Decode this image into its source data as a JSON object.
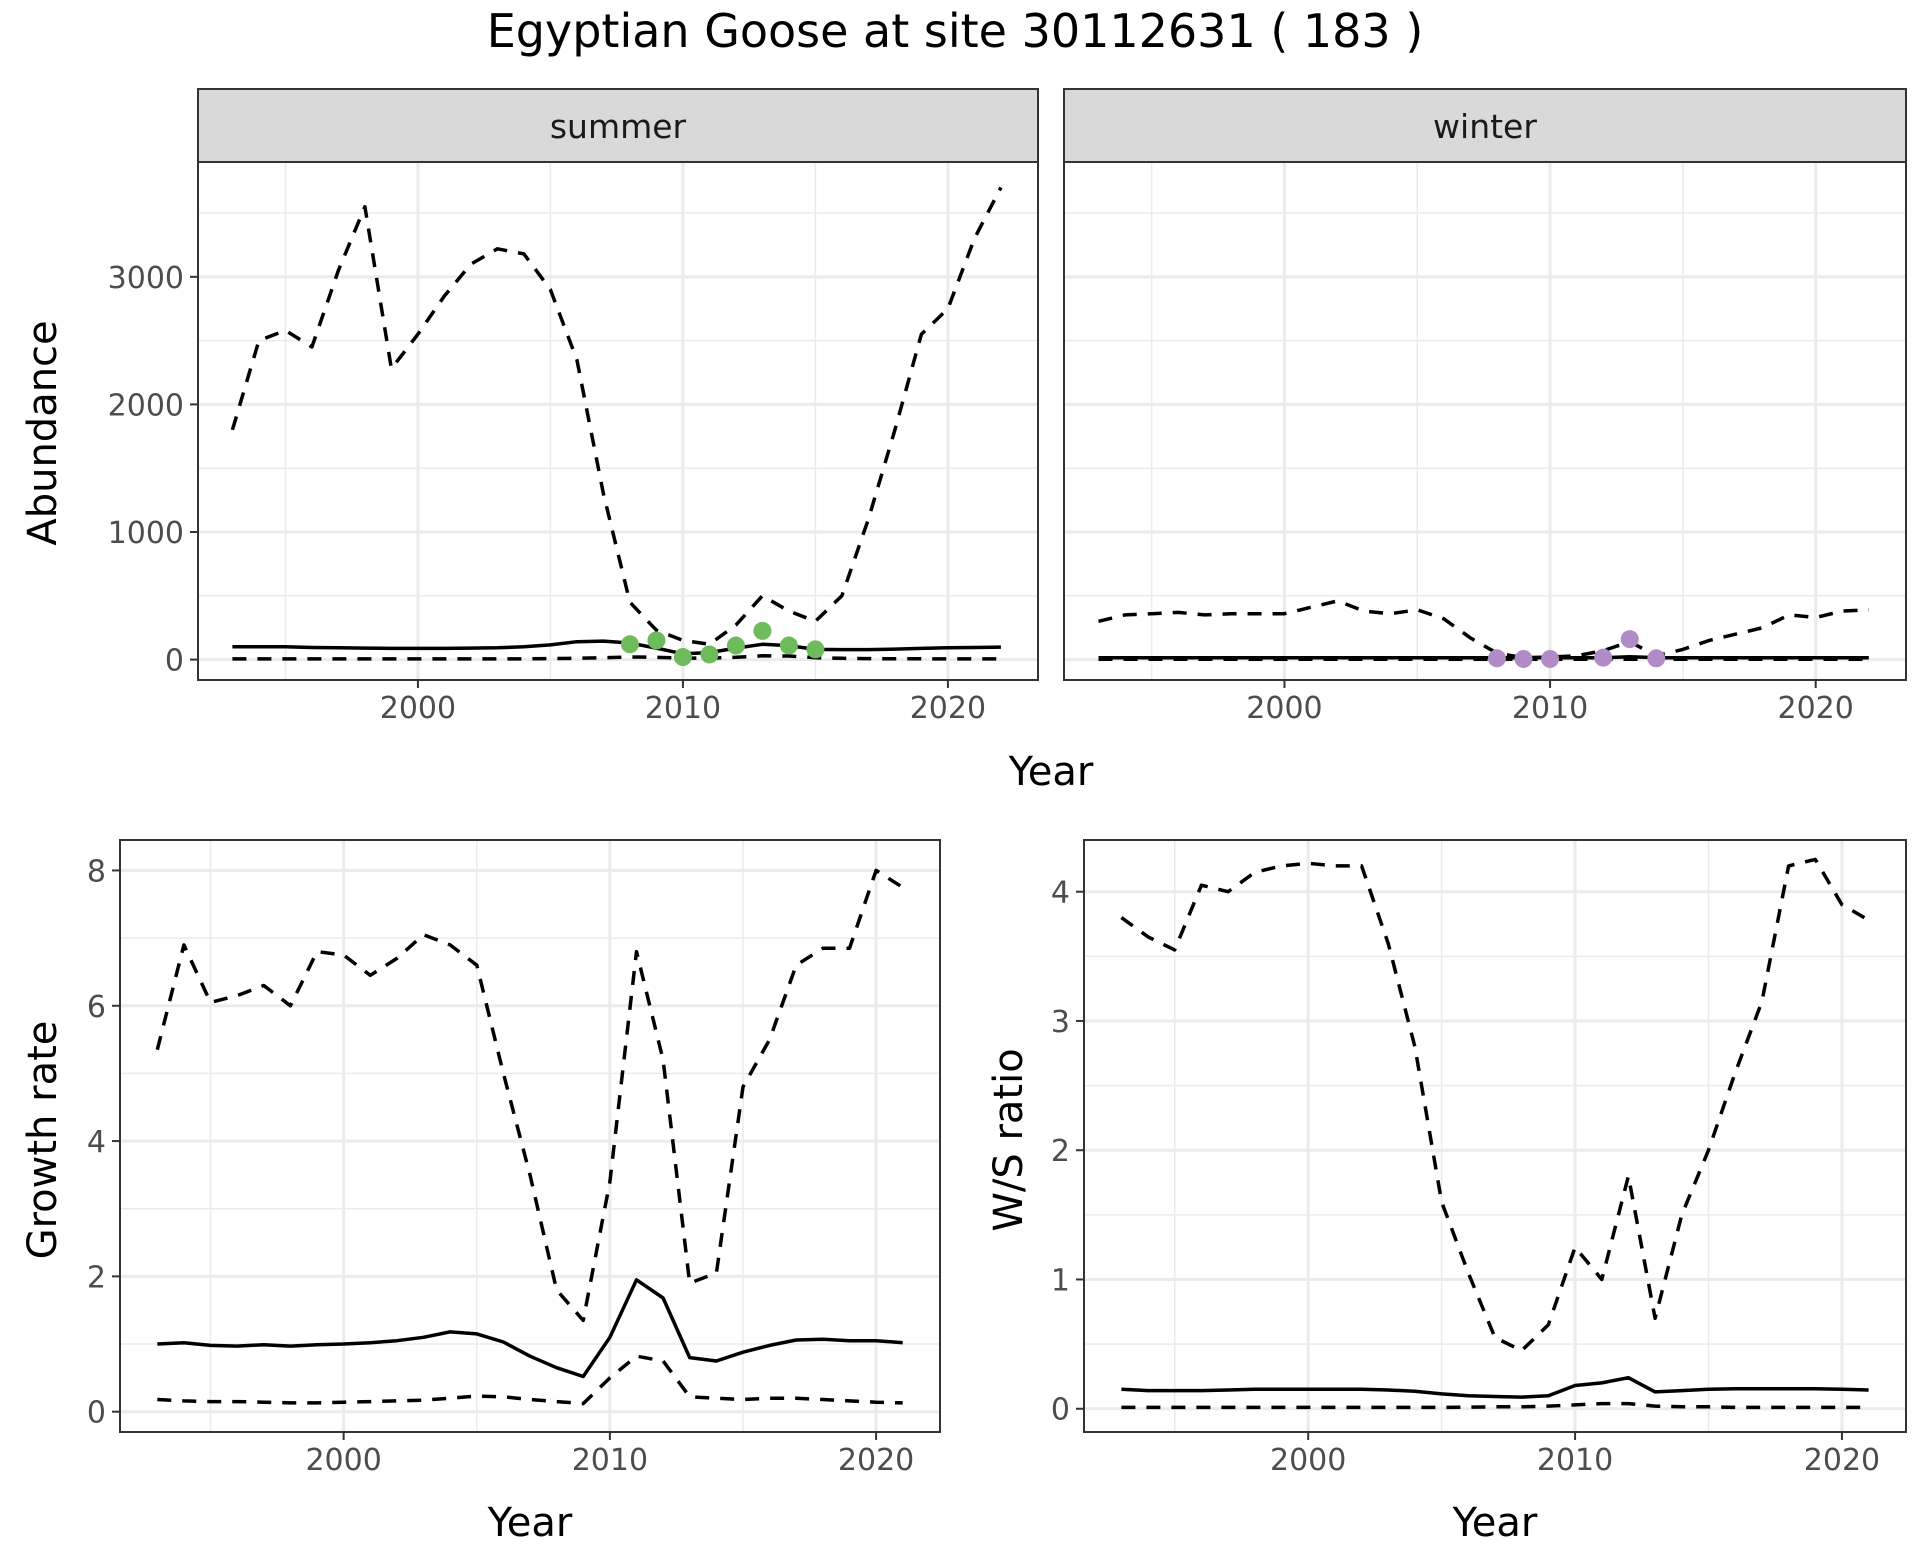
{
  "title": "Egyptian Goose at site 30112631 ( 183 )",
  "colors": {
    "summer_points": "#6dbb5b",
    "winter_points": "#b18bc6",
    "lines": "#000000"
  },
  "chart_data": [
    {
      "id": "abundance",
      "type": "line",
      "facets": [
        "summer",
        "winter"
      ],
      "xlabel": "Year",
      "ylabel": "Abundance",
      "xlim": [
        1991.7,
        2023.4
      ],
      "ylim": [
        -160,
        3900
      ],
      "xticks": [
        2000,
        2010,
        2020
      ],
      "yticks": [
        0,
        1000,
        2000,
        3000
      ],
      "grid": true,
      "panels": {
        "summer": {
          "x": [
            1993,
            1994,
            1995,
            1996,
            1997,
            1998,
            1999,
            2000,
            2001,
            2002,
            2003,
            2004,
            2005,
            2006,
            2007,
            2008,
            2009,
            2010,
            2011,
            2012,
            2013,
            2014,
            2015,
            2016,
            2017,
            2018,
            2019,
            2020,
            2021,
            2022
          ],
          "upper": [
            1800,
            2500,
            2580,
            2450,
            3050,
            3550,
            2280,
            2550,
            2850,
            3100,
            3220,
            3180,
            2900,
            2350,
            1300,
            450,
            230,
            150,
            120,
            270,
            500,
            380,
            300,
            500,
            1100,
            1800,
            2550,
            2750,
            3300,
            3700
          ],
          "mid": [
            100,
            100,
            100,
            95,
            92,
            90,
            88,
            88,
            88,
            90,
            92,
            100,
            115,
            140,
            145,
            130,
            90,
            45,
            55,
            90,
            120,
            110,
            80,
            78,
            78,
            82,
            88,
            92,
            95,
            98
          ],
          "lower": [
            5,
            5,
            5,
            5,
            5,
            5,
            5,
            5,
            5,
            5,
            5,
            5,
            8,
            10,
            15,
            20,
            18,
            12,
            12,
            18,
            30,
            28,
            15,
            10,
            8,
            6,
            6,
            5,
            5,
            5
          ],
          "points": {
            "x": [
              2008,
              2009,
              2010,
              2011,
              2012,
              2013,
              2014,
              2015
            ],
            "y": [
              120,
              150,
              20,
              40,
              110,
              225,
              110,
              80
            ]
          }
        },
        "winter": {
          "x": [
            1993,
            1994,
            1995,
            1996,
            1997,
            1998,
            1999,
            2000,
            2001,
            2002,
            2003,
            2004,
            2005,
            2006,
            2007,
            2008,
            2009,
            2010,
            2011,
            2012,
            2013,
            2014,
            2015,
            2016,
            2017,
            2018,
            2019,
            2020,
            2021,
            2022
          ],
          "upper": [
            300,
            350,
            360,
            370,
            350,
            360,
            360,
            360,
            410,
            460,
            380,
            360,
            390,
            320,
            170,
            50,
            15,
            20,
            30,
            70,
            140,
            30,
            80,
            150,
            200,
            250,
            350,
            330,
            380,
            390
          ],
          "mid": [
            15,
            15,
            15,
            15,
            15,
            15,
            15,
            15,
            15,
            15,
            15,
            15,
            15,
            15,
            15,
            15,
            14,
            14,
            14,
            15,
            22,
            15,
            15,
            15,
            15,
            15,
            15,
            15,
            15,
            15
          ],
          "lower": [
            2,
            2,
            2,
            2,
            2,
            2,
            2,
            2,
            2,
            2,
            2,
            2,
            2,
            2,
            2,
            2,
            2,
            2,
            2,
            2,
            3,
            2,
            2,
            2,
            2,
            2,
            2,
            2,
            2,
            2
          ],
          "points": {
            "x": [
              2008,
              2009,
              2010,
              2012,
              2013,
              2014
            ],
            "y": [
              10,
              5,
              5,
              15,
              160,
              10
            ]
          }
        }
      }
    },
    {
      "id": "growth",
      "type": "line",
      "xlabel": "Year",
      "ylabel": "Growth rate",
      "xlim": [
        1991.6,
        2022.4
      ],
      "ylim": [
        -0.3,
        8.45
      ],
      "xticks": [
        2000,
        2010,
        2020
      ],
      "yticks": [
        0,
        2,
        4,
        6,
        8
      ],
      "grid": true,
      "x": [
        1993,
        1994,
        1995,
        1996,
        1997,
        1998,
        1999,
        2000,
        2001,
        2002,
        2003,
        2004,
        2005,
        2006,
        2007,
        2008,
        2009,
        2010,
        2011,
        2012,
        2013,
        2014,
        2015,
        2016,
        2017,
        2018,
        2019,
        2020,
        2021
      ],
      "upper": [
        5.35,
        6.9,
        6.05,
        6.15,
        6.3,
        6.0,
        6.8,
        6.75,
        6.45,
        6.7,
        7.05,
        6.9,
        6.6,
        5.0,
        3.5,
        1.8,
        1.35,
        3.4,
        6.8,
        5.2,
        1.9,
        2.05,
        4.8,
        5.5,
        6.6,
        6.85,
        6.85,
        8.0,
        7.75
      ],
      "mid": [
        1.0,
        1.02,
        0.98,
        0.97,
        0.99,
        0.97,
        0.99,
        1.0,
        1.02,
        1.05,
        1.1,
        1.18,
        1.15,
        1.03,
        0.82,
        0.65,
        0.52,
        1.1,
        1.95,
        1.68,
        0.8,
        0.75,
        0.88,
        0.98,
        1.06,
        1.07,
        1.05,
        1.05,
        1.02
      ],
      "lower": [
        0.18,
        0.16,
        0.15,
        0.15,
        0.14,
        0.13,
        0.13,
        0.14,
        0.15,
        0.16,
        0.17,
        0.2,
        0.23,
        0.22,
        0.18,
        0.15,
        0.12,
        0.5,
        0.82,
        0.75,
        0.22,
        0.2,
        0.18,
        0.2,
        0.2,
        0.18,
        0.16,
        0.14,
        0.13
      ]
    },
    {
      "id": "ratio",
      "type": "line",
      "xlabel": "Year",
      "ylabel": "W/S ratio",
      "xlim": [
        1991.6,
        2022.4
      ],
      "ylim": [
        -0.18,
        4.4
      ],
      "xticks": [
        2000,
        2010,
        2020
      ],
      "yticks": [
        0,
        1,
        2,
        3,
        4
      ],
      "grid": true,
      "x": [
        1993,
        1994,
        1995,
        1996,
        1997,
        1998,
        1999,
        2000,
        2001,
        2002,
        2003,
        2004,
        2005,
        2006,
        2007,
        2008,
        2009,
        2010,
        2011,
        2012,
        2013,
        2014,
        2015,
        2016,
        2017,
        2018,
        2019,
        2020,
        2021
      ],
      "upper": [
        3.8,
        3.65,
        3.55,
        4.05,
        4.0,
        4.15,
        4.2,
        4.22,
        4.2,
        4.2,
        3.6,
        2.8,
        1.6,
        1.05,
        0.55,
        0.45,
        0.65,
        1.25,
        1.0,
        1.8,
        0.7,
        1.5,
        2.0,
        2.6,
        3.15,
        4.2,
        4.25,
        3.9,
        3.78
      ],
      "mid": [
        0.15,
        0.14,
        0.14,
        0.14,
        0.145,
        0.15,
        0.15,
        0.15,
        0.15,
        0.15,
        0.145,
        0.135,
        0.115,
        0.1,
        0.095,
        0.09,
        0.1,
        0.18,
        0.2,
        0.24,
        0.13,
        0.14,
        0.15,
        0.155,
        0.155,
        0.155,
        0.155,
        0.15,
        0.145
      ],
      "lower": [
        0.01,
        0.01,
        0.01,
        0.01,
        0.01,
        0.01,
        0.01,
        0.01,
        0.01,
        0.01,
        0.01,
        0.01,
        0.01,
        0.012,
        0.015,
        0.015,
        0.02,
        0.03,
        0.04,
        0.04,
        0.02,
        0.015,
        0.015,
        0.01,
        0.01,
        0.01,
        0.01,
        0.01,
        0.01
      ]
    }
  ]
}
